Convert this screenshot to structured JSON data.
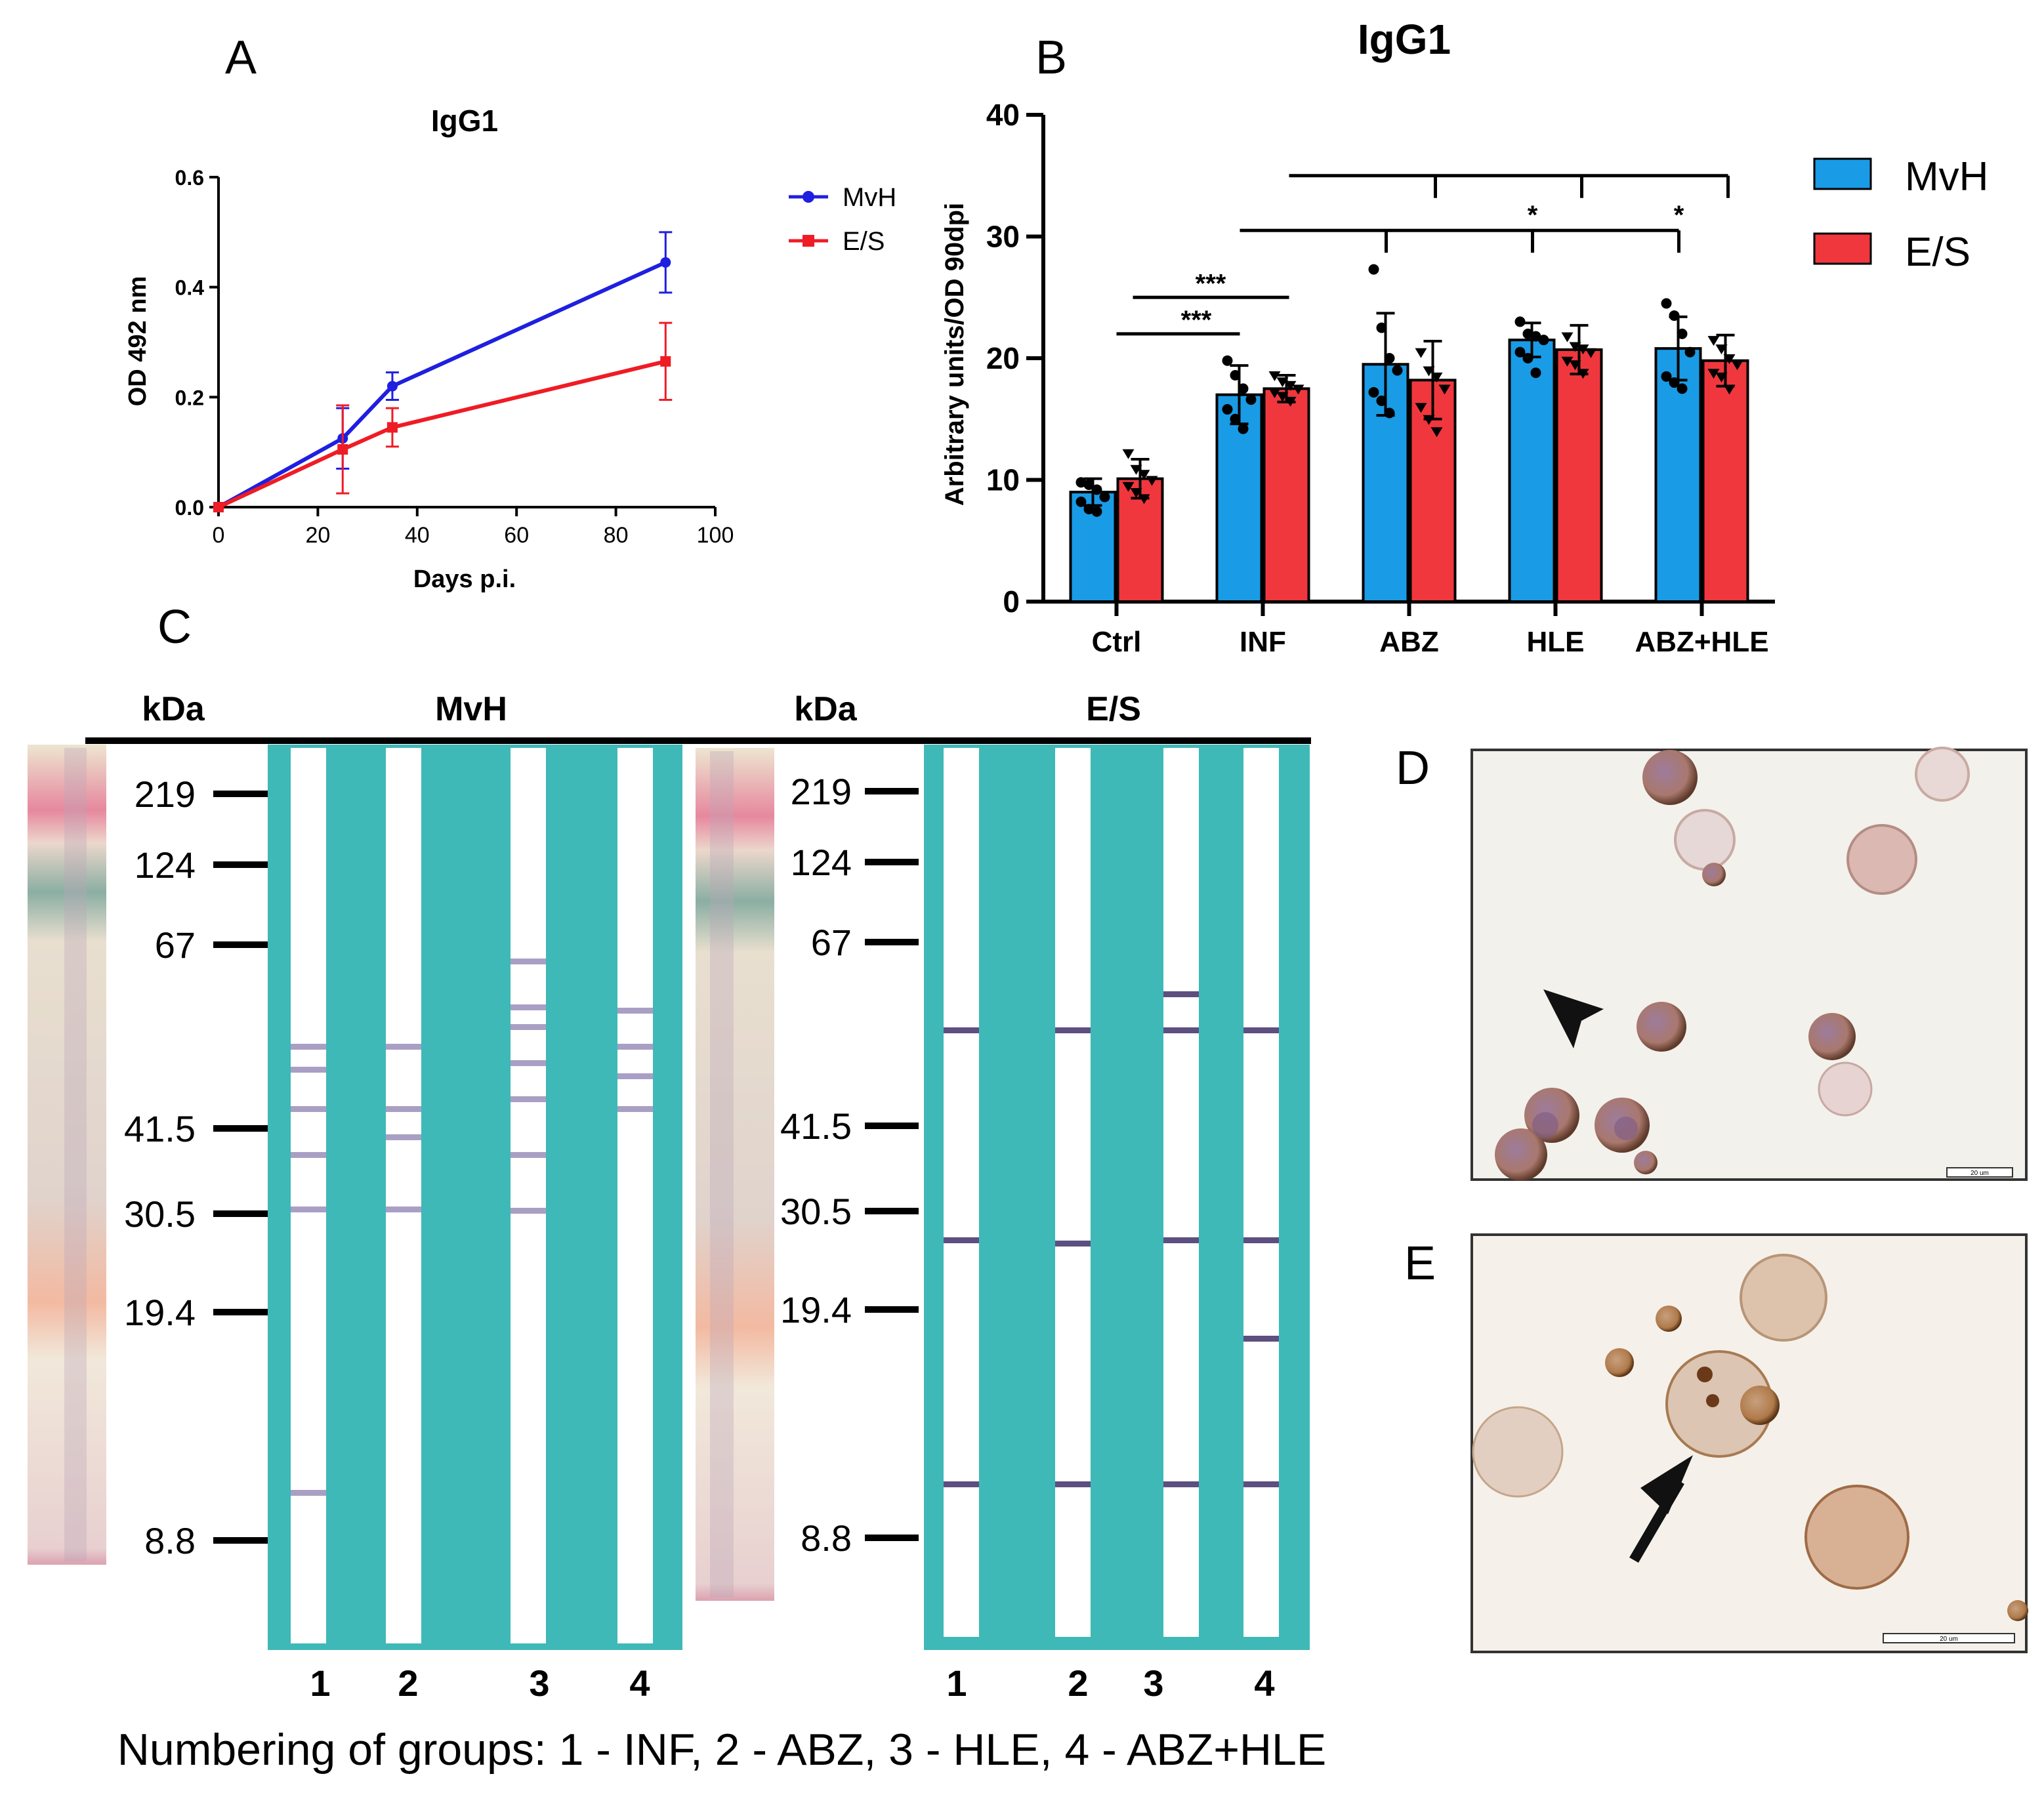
{
  "panel_labels": {
    "a": "A",
    "b": "B",
    "c": "C",
    "d": "D",
    "e": "E"
  },
  "chart_data": [
    {
      "id": "A",
      "type": "line",
      "title": "IgG1",
      "xlabel": "Days p.i.",
      "ylabel": "OD 492 nm",
      "xlim": [
        0,
        100
      ],
      "ylim": [
        0,
        0.6
      ],
      "xticks": [
        0,
        20,
        40,
        60,
        80,
        100
      ],
      "yticks": [
        0.0,
        0.2,
        0.4,
        0.6
      ],
      "ytick_labels": [
        "0.0",
        "0.2",
        "0.4",
        "0.6"
      ],
      "legend_position": "right",
      "series": [
        {
          "name": "MvH",
          "color": "#1f1fe0",
          "marker": "circle",
          "x": [
            0,
            25,
            35,
            90
          ],
          "y": [
            0.0,
            0.125,
            0.22,
            0.445
          ],
          "err": [
            0.0,
            0.055,
            0.025,
            0.055
          ]
        },
        {
          "name": "E/S",
          "color": "#ee1c25",
          "marker": "square",
          "x": [
            0,
            25,
            35,
            90
          ],
          "y": [
            0.0,
            0.105,
            0.145,
            0.265
          ],
          "err": [
            0.0,
            0.08,
            0.035,
            0.07
          ]
        }
      ]
    },
    {
      "id": "B",
      "type": "bar",
      "title": "IgG1",
      "xlabel": "",
      "ylabel": "Arbitrary units/OD 90dpi",
      "ylim": [
        0,
        40
      ],
      "yticks": [
        0,
        10,
        20,
        30,
        40
      ],
      "categories": [
        "Ctrl",
        "INF",
        "ABZ",
        "HLE",
        "ABZ+HLE"
      ],
      "legend_position": "top-right",
      "series": [
        {
          "name": "MvH",
          "color": "#1a9be6",
          "values": [
            9.0,
            17.0,
            19.5,
            21.5,
            20.8
          ],
          "err": [
            1.1,
            2.4,
            4.2,
            1.4,
            2.6
          ],
          "points": [
            [
              9.8,
              9.6,
              9.2,
              8.6,
              8.2,
              7.6,
              7.4
            ],
            [
              19.8,
              18.6,
              17.5,
              16.6,
              15.8,
              15.0,
              14.2
            ],
            [
              27.3,
              22.5,
              20.0,
              19.0,
              17.2,
              16.5,
              15.5
            ],
            [
              23.0,
              22.0,
              21.8,
              21.5,
              20.5,
              20.0,
              18.8
            ],
            [
              24.5,
              23.5,
              22.0,
              20.5,
              18.5,
              18.0,
              17.5
            ]
          ]
        },
        {
          "name": "E/S",
          "color": "#f0373e",
          "values": [
            10.1,
            17.5,
            18.2,
            20.7,
            19.8
          ],
          "err": [
            1.6,
            1.1,
            3.2,
            2.0,
            2.1
          ],
          "points": [
            [
              12.2,
              10.9,
              10.5,
              10.0,
              9.5,
              9.0,
              8.5
            ],
            [
              18.6,
              18.1,
              17.8,
              17.5,
              17.2,
              16.9,
              16.5
            ],
            [
              20.5,
              19.0,
              18.5,
              17.5,
              16.0,
              15.0,
              14.0
            ],
            [
              21.8,
              21.0,
              20.8,
              20.5,
              19.8,
              19.5,
              18.8
            ],
            [
              21.5,
              20.8,
              20.0,
              19.5,
              18.8,
              18.5,
              17.5
            ]
          ]
        }
      ],
      "significance": [
        {
          "label": "***",
          "from": "Ctrl",
          "to": "INF",
          "y": 22
        },
        {
          "label": "***",
          "from": "Ctrl",
          "to": "INF",
          "y": 25
        },
        {
          "label": "*",
          "from": "INF",
          "to": "HLE",
          "y": 30.5
        },
        {
          "label": "*",
          "from": "INF",
          "to": "ABZ+HLE",
          "y": 30.5
        },
        {
          "label": "",
          "from": "INF",
          "to": "ABZ+HLE",
          "y": 35
        }
      ]
    }
  ],
  "western_blot": {
    "unit_label": "kDa",
    "markers": [
      "219",
      "124",
      "67",
      "41.5",
      "30.5",
      "19.4",
      "8.8"
    ],
    "left_title": "MvH",
    "right_title": "E/S",
    "lane_numbers": [
      "1",
      "2",
      "3",
      "4"
    ],
    "caption": "Numbering of groups: 1 - INF, 2 - ABZ, 3 - HLE, 4 - ABZ+HLE"
  },
  "micro": {
    "scale_d": "20 um",
    "scale_e": "20 um"
  }
}
